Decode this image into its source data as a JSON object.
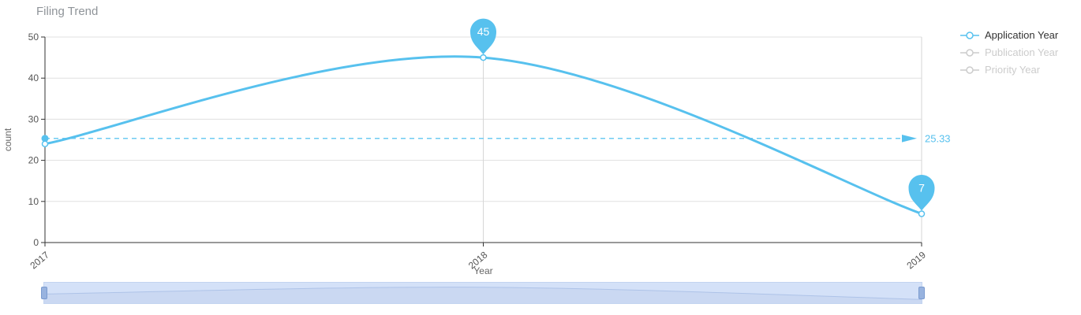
{
  "title": "Filing Trend",
  "colors": {
    "series": "#57c1ee",
    "avg_line": "#6ecbf2",
    "title_text": "#8f9499",
    "axis_line": "#333333",
    "grid_line": "#e0e0e0",
    "tick_text": "#555555",
    "axis_name_text": "#666666",
    "legend_active_text": "#333333",
    "legend_inactive": "#cccccc",
    "pin_text": "#ffffff",
    "datazoom_fill": "#d4e1f8",
    "datazoom_line": "#aec3e8",
    "datazoom_handle": "#98b3df"
  },
  "legend": {
    "items": [
      {
        "label": "Application Year",
        "active": true
      },
      {
        "label": "Publication Year",
        "active": false
      },
      {
        "label": "Priority Year",
        "active": false
      }
    ]
  },
  "chart_data": {
    "type": "line",
    "title": "Filing Trend",
    "xlabel": "Year",
    "ylabel": "count",
    "categories": [
      "2017",
      "2018",
      "2019"
    ],
    "series": [
      {
        "name": "Application Year",
        "values": [
          24,
          45,
          7
        ],
        "visible": true
      },
      {
        "name": "Publication Year",
        "values": [],
        "visible": false
      },
      {
        "name": "Priority Year",
        "values": [],
        "visible": false
      }
    ],
    "ylim": [
      0,
      50
    ],
    "yticks": [
      0,
      10,
      20,
      30,
      40,
      50
    ],
    "smooth": true,
    "grid": true,
    "legend_position": "right",
    "average_line": {
      "value": 25.33,
      "label": "25.33"
    },
    "marked_points": [
      {
        "category": "2018",
        "value": 45,
        "label": "45"
      },
      {
        "category": "2019",
        "value": 7,
        "label": "7"
      }
    ]
  }
}
